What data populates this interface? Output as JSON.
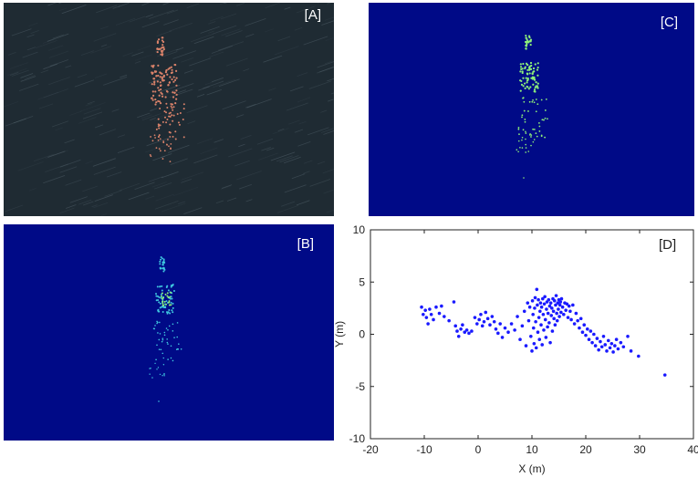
{
  "panels": {
    "a_label": "[A]",
    "b_label": "[B]",
    "c_label": "[C]",
    "d_label": "[D]"
  },
  "colors": {
    "ocean_dark": "#1f2b33",
    "map_blue": "#000a87",
    "marker_blue": "#1a1aff",
    "orange_particle": "#d9826a",
    "cyan_particle": "#3fc7e0",
    "green_particle": "#8ef07a"
  },
  "chart_data": {
    "type": "scatter",
    "title": "",
    "xlabel": "X (m)",
    "ylabel": "Y (m)",
    "xlim": [
      -20,
      40
    ],
    "ylim": [
      -10,
      10
    ],
    "xticks": [
      -20,
      -10,
      0,
      10,
      20,
      30,
      40
    ],
    "yticks": [
      -10,
      -5,
      0,
      5,
      10
    ],
    "grid": false,
    "points": [
      [
        -10.5,
        2.6
      ],
      [
        -10.2,
        1.9
      ],
      [
        -9.8,
        2.3
      ],
      [
        -9.6,
        1.6
      ],
      [
        -9.3,
        1.0
      ],
      [
        -9.0,
        2.4
      ],
      [
        -8.7,
        1.9
      ],
      [
        -8.3,
        1.4
      ],
      [
        -7.8,
        2.6
      ],
      [
        -7.2,
        2.0
      ],
      [
        -6.8,
        2.7
      ],
      [
        -6.3,
        1.7
      ],
      [
        -5.4,
        1.3
      ],
      [
        -4.5,
        3.1
      ],
      [
        -4.2,
        0.8
      ],
      [
        -3.9,
        0.3
      ],
      [
        -3.6,
        -0.2
      ],
      [
        -3.2,
        0.5
      ],
      [
        -2.9,
        0.9
      ],
      [
        -2.5,
        0.2
      ],
      [
        -2.1,
        0.4
      ],
      [
        -1.7,
        0.1
      ],
      [
        -1.2,
        0.3
      ],
      [
        -0.6,
        1.6
      ],
      [
        -0.2,
        1.0
      ],
      [
        0.2,
        1.4
      ],
      [
        0.5,
        1.9
      ],
      [
        0.8,
        0.8
      ],
      [
        1.1,
        1.2
      ],
      [
        1.4,
        2.1
      ],
      [
        1.8,
        1.5
      ],
      [
        2.2,
        0.9
      ],
      [
        2.6,
        1.7
      ],
      [
        3.0,
        1.2
      ],
      [
        3.3,
        0.5
      ],
      [
        3.7,
        0.1
      ],
      [
        4.1,
        1.0
      ],
      [
        4.5,
        -0.3
      ],
      [
        5.0,
        0.6
      ],
      [
        5.6,
        0.2
      ],
      [
        6.2,
        1.0
      ],
      [
        6.8,
        0.4
      ],
      [
        7.3,
        1.7
      ],
      [
        7.8,
        -0.5
      ],
      [
        8.2,
        0.8
      ],
      [
        8.6,
        2.2
      ],
      [
        8.9,
        -1.1
      ],
      [
        9.2,
        3.0
      ],
      [
        9.4,
        1.3
      ],
      [
        9.6,
        2.6
      ],
      [
        9.8,
        -0.2
      ],
      [
        10.0,
        -1.6
      ],
      [
        10.1,
        3.2
      ],
      [
        10.2,
        1.9
      ],
      [
        10.3,
        0.6
      ],
      [
        10.4,
        -0.9
      ],
      [
        10.5,
        2.5
      ],
      [
        10.6,
        3.5
      ],
      [
        10.7,
        1.2
      ],
      [
        10.8,
        -1.3
      ],
      [
        10.9,
        4.3
      ],
      [
        11.0,
        2.8
      ],
      [
        11.1,
        0.2
      ],
      [
        11.2,
        3.3
      ],
      [
        11.3,
        1.6
      ],
      [
        11.4,
        -0.5
      ],
      [
        11.5,
        2.2
      ],
      [
        11.6,
        3.0
      ],
      [
        11.7,
        0.9
      ],
      [
        11.8,
        2.6
      ],
      [
        11.9,
        -1.0
      ],
      [
        12.0,
        3.4
      ],
      [
        12.1,
        1.9
      ],
      [
        12.2,
        0.4
      ],
      [
        12.3,
        2.9
      ],
      [
        12.4,
        3.6
      ],
      [
        12.5,
        1.4
      ],
      [
        12.6,
        -0.3
      ],
      [
        12.7,
        2.4
      ],
      [
        12.8,
        3.1
      ],
      [
        12.9,
        0.7
      ],
      [
        13.0,
        2.0
      ],
      [
        13.1,
        3.3
      ],
      [
        13.2,
        1.1
      ],
      [
        13.3,
        2.7
      ],
      [
        13.4,
        -0.8
      ],
      [
        13.5,
        3.0
      ],
      [
        13.6,
        1.8
      ],
      [
        13.7,
        2.5
      ],
      [
        13.8,
        0.3
      ],
      [
        13.9,
        3.4
      ],
      [
        14.0,
        2.2
      ],
      [
        14.1,
        1.5
      ],
      [
        14.2,
        3.2
      ],
      [
        14.3,
        0.9
      ],
      [
        14.4,
        2.8
      ],
      [
        14.5,
        3.7
      ],
      [
        14.6,
        2.0
      ],
      [
        14.7,
        1.3
      ],
      [
        14.8,
        3.0
      ],
      [
        14.9,
        2.4
      ],
      [
        15.0,
        3.3
      ],
      [
        15.1,
        1.7
      ],
      [
        15.2,
        2.8
      ],
      [
        15.3,
        3.1
      ],
      [
        15.4,
        2.1
      ],
      [
        15.5,
        3.4
      ],
      [
        15.7,
        2.6
      ],
      [
        15.9,
        1.9
      ],
      [
        16.1,
        3.0
      ],
      [
        16.3,
        2.3
      ],
      [
        16.5,
        2.9
      ],
      [
        16.7,
        1.6
      ],
      [
        16.9,
        2.7
      ],
      [
        17.1,
        2.2
      ],
      [
        17.3,
        1.4
      ],
      [
        17.6,
        2.8
      ],
      [
        17.9,
        1.0
      ],
      [
        18.2,
        2.0
      ],
      [
        18.5,
        1.3
      ],
      [
        18.8,
        0.6
      ],
      [
        19.1,
        1.5
      ],
      [
        19.4,
        0.2
      ],
      [
        19.7,
        0.9
      ],
      [
        20.0,
        -0.1
      ],
      [
        20.3,
        0.5
      ],
      [
        20.6,
        -0.5
      ],
      [
        20.9,
        0.3
      ],
      [
        21.2,
        -0.8
      ],
      [
        21.5,
        0.0
      ],
      [
        21.8,
        -1.1
      ],
      [
        22.1,
        -0.4
      ],
      [
        22.4,
        -1.5
      ],
      [
        22.7,
        -0.7
      ],
      [
        23.0,
        -1.2
      ],
      [
        23.3,
        -0.2
      ],
      [
        23.6,
        -1.0
      ],
      [
        23.9,
        -1.6
      ],
      [
        24.2,
        -0.6
      ],
      [
        24.5,
        -1.3
      ],
      [
        24.8,
        -0.9
      ],
      [
        25.1,
        -1.7
      ],
      [
        25.4,
        -1.1
      ],
      [
        25.7,
        -0.5
      ],
      [
        26.0,
        -1.4
      ],
      [
        26.5,
        -0.8
      ],
      [
        27.0,
        -1.2
      ],
      [
        27.8,
        -0.2
      ],
      [
        28.4,
        -1.6
      ],
      [
        29.8,
        -2.1
      ],
      [
        34.7,
        -3.9
      ]
    ]
  }
}
